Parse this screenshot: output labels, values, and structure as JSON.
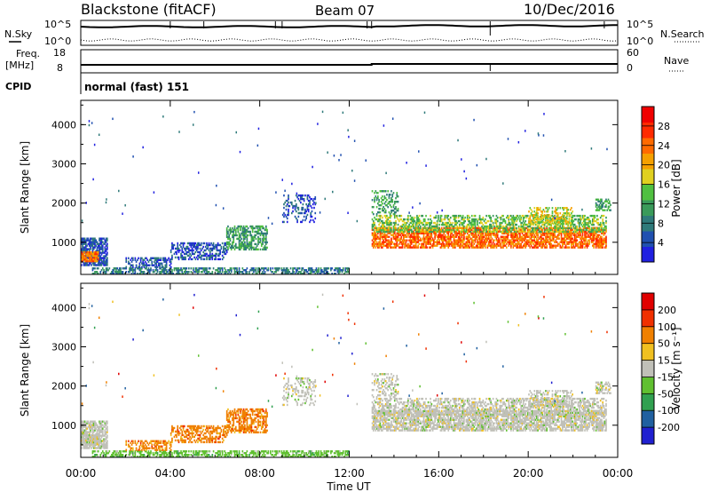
{
  "header": {
    "station": "Blackstone (fitACF)",
    "beam": "Beam 07",
    "date": "10/Dec/2016"
  },
  "noise_panel": {
    "left_label": "N.Sky",
    "right_label": "N.Search",
    "ticks_left": [
      "10^5",
      "10^0"
    ],
    "ticks_right": [
      "10^5",
      "10^0"
    ]
  },
  "freq_panel": {
    "left_label_1": "Freq.",
    "left_label_2": "[MHz]",
    "right_label": "Nave",
    "ticks_left": [
      "18",
      "8"
    ],
    "ticks_right": [
      "60",
      "0"
    ]
  },
  "cpid_panel": {
    "label": "CPID",
    "mode": "normal (fast) 151"
  },
  "chart_data": [
    {
      "type": "heatmap",
      "name": "power",
      "ylabel": "Slant Range [km]",
      "y_ticks": [
        1000,
        2000,
        3000,
        4000
      ],
      "ylim": [
        180,
        4620
      ],
      "colorbar_label": "Power [dB]",
      "colorbar_ticks": [
        "28",
        "24",
        "20",
        "16",
        "12",
        "8",
        "4"
      ],
      "colors": [
        "#2020e0",
        "#2050b0",
        "#2f7a7a",
        "#3a9a5a",
        "#50c040",
        "#e0d020",
        "#f5a000",
        "#ff6a00",
        "#ff2a00",
        "#f00000"
      ]
    },
    {
      "type": "heatmap",
      "name": "velocity",
      "ylabel": "Slant Range [km]",
      "y_ticks": [
        1000,
        2000,
        3000,
        4000
      ],
      "ylim": [
        180,
        4620
      ],
      "colorbar_label": "Velocity [m s⁻¹]",
      "colorbar_ticks": [
        "200",
        "100",
        "50",
        "15",
        "-15",
        "-50",
        "-100",
        "-200"
      ],
      "colors": [
        "#2020d0",
        "#2060a0",
        "#30a050",
        "#60c030",
        "#c0c0b8",
        "#f0c020",
        "#f08000",
        "#f03000",
        "#e00000"
      ]
    }
  ],
  "x_axis": {
    "title": "Time UT",
    "ticks": [
      "00:00",
      "04:00",
      "08:00",
      "12:00",
      "16:00",
      "20:00",
      "00:00"
    ]
  }
}
